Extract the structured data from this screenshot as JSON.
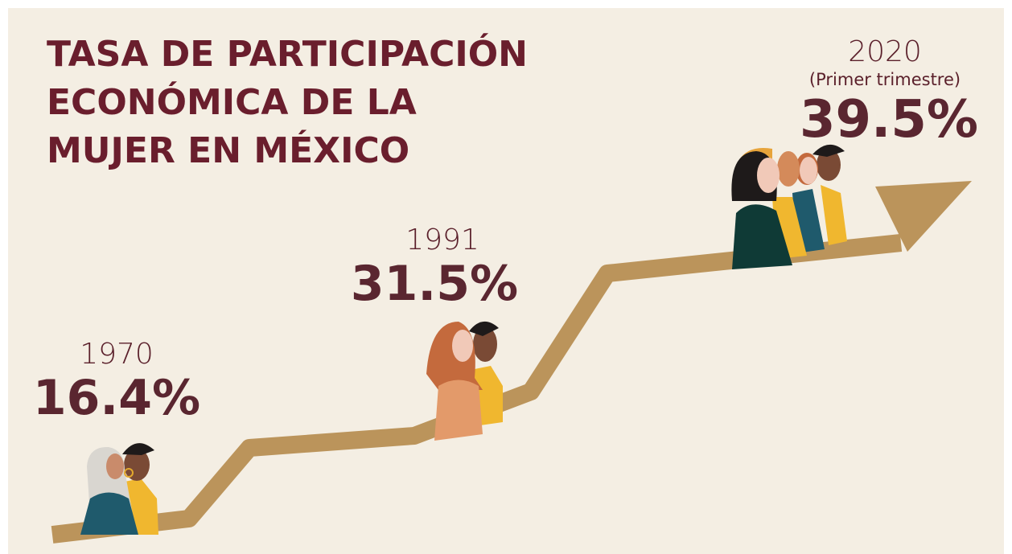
{
  "header": {
    "title": [
      "TASA DE PARTICIPACIÓN",
      "ECONÓMICA DE LA",
      "MUJER EN MÉXICO"
    ]
  },
  "points": [
    {
      "year": "1970",
      "value": "16.4%"
    },
    {
      "year": "1991",
      "value": "31.5%"
    },
    {
      "year": "2020",
      "note": "(Primer trimestre)",
      "value": "39.5%"
    }
  ]
}
